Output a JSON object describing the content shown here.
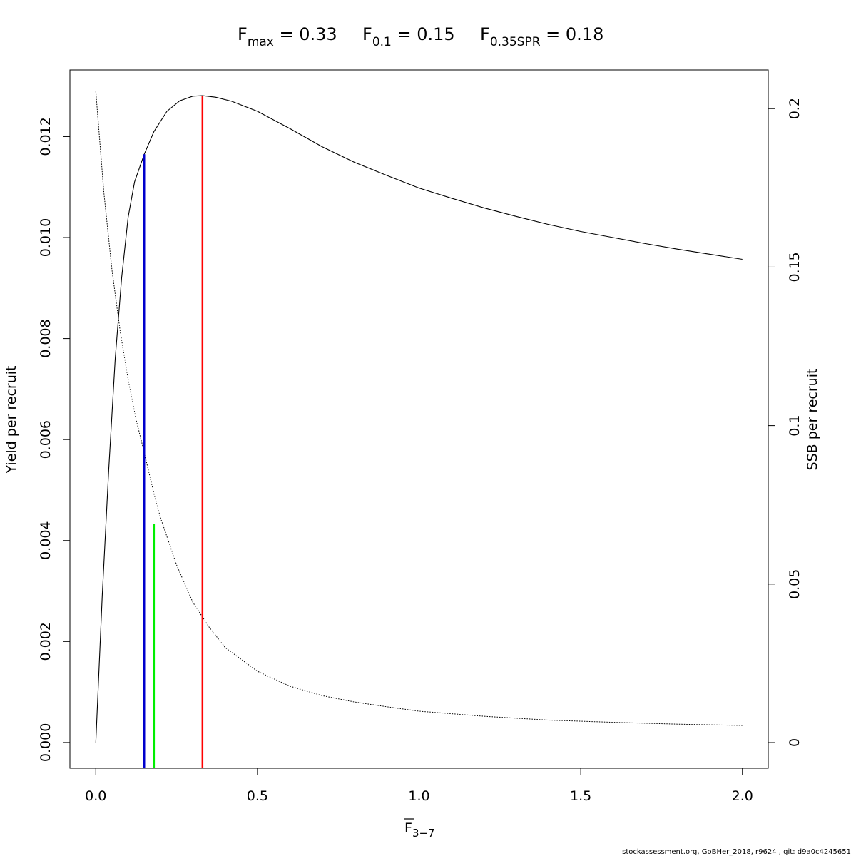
{
  "chart_data": {
    "type": "line",
    "title_parts": [
      {
        "main": "F",
        "sub": "max",
        "rest": " = 0.33"
      },
      {
        "main": "F",
        "sub": "0.1",
        "rest": " = 0.15"
      },
      {
        "main": "F",
        "sub": "0.35SPR",
        "rest": " = 0.18"
      }
    ],
    "xlabel": {
      "main": "F",
      "sub": "3−7",
      "overbar": true
    },
    "ylabel_left": "Yield per recruit",
    "ylabel_right": "SSB per recruit",
    "xlim": [
      -0.08,
      2.08
    ],
    "ylim_left": [
      -0.00051,
      0.01332
    ],
    "ylim_right": [
      -0.0081,
      0.2122
    ],
    "x_ticks": [
      0,
      0.5,
      1,
      1.5,
      2
    ],
    "x_tick_labels": [
      "0.0",
      "0.5",
      "1.0",
      "1.5",
      "2.0"
    ],
    "y_left_ticks": [
      0,
      0.002,
      0.004,
      0.006,
      0.008,
      0.01,
      0.012
    ],
    "y_left_tick_labels": [
      "0.000",
      "0.002",
      "0.004",
      "0.006",
      "0.008",
      "0.010",
      "0.012"
    ],
    "y_right_ticks": [
      0,
      0.05,
      0.1,
      0.15,
      0.2
    ],
    "y_right_tick_labels": [
      "0",
      "0.05",
      "0.1",
      "0.15",
      "0.2"
    ],
    "series": [
      {
        "axis": "left",
        "line_style": "solid",
        "color": "#000000",
        "x": [
          0,
          0.02,
          0.04,
          0.06,
          0.08,
          0.1,
          0.12,
          0.15,
          0.18,
          0.22,
          0.26,
          0.3,
          0.33,
          0.37,
          0.42,
          0.5,
          0.6,
          0.7,
          0.8,
          0.9,
          1.0,
          1.1,
          1.2,
          1.3,
          1.4,
          1.5,
          1.6,
          1.7,
          1.8,
          1.9,
          2.0
        ],
        "y": [
          0,
          0.0029,
          0.0054,
          0.0076,
          0.0092,
          0.0104,
          0.0111,
          0.01165,
          0.0121,
          0.0125,
          0.01271,
          0.0128,
          0.01281,
          0.01278,
          0.0127,
          0.0125,
          0.01216,
          0.0118,
          0.01149,
          0.01123,
          0.01098,
          0.01078,
          0.01059,
          0.01042,
          0.01026,
          0.01012,
          0.01,
          0.00988,
          0.00977,
          0.00967,
          0.00957
        ]
      },
      {
        "axis": "right",
        "line_style": "dotted",
        "color": "#000000",
        "x": [
          0,
          0.025,
          0.05,
          0.075,
          0.1,
          0.125,
          0.15,
          0.18,
          0.2,
          0.25,
          0.3,
          0.35,
          0.4,
          0.5,
          0.6,
          0.7,
          0.8,
          0.9,
          1.0,
          1.2,
          1.4,
          1.6,
          1.8,
          2.0
        ],
        "y": [
          0.2054,
          0.1735,
          0.1492,
          0.13,
          0.1145,
          0.1018,
          0.0915,
          0.0785,
          0.071,
          0.056,
          0.0443,
          0.0365,
          0.03,
          0.0225,
          0.0178,
          0.0148,
          0.0128,
          0.0113,
          0.0099,
          0.0083,
          0.0071,
          0.0064,
          0.0058,
          0.0054
        ]
      }
    ],
    "reference_lines": [
      {
        "name": "Fmax",
        "x": 0.33,
        "y_top": 0.01281,
        "color": "#ff0000"
      },
      {
        "name": "F0.1",
        "x": 0.15,
        "y_top": 0.01165,
        "color": "#0000cc"
      },
      {
        "name": "F0.35SPR",
        "x": 0.18,
        "y_top": 0.00433,
        "color": "#00ee00"
      }
    ],
    "grid": false,
    "legend": "none"
  },
  "footer": "stockassessment.org, GoBHer_2018, r9624 , git: d9a0c4245651"
}
